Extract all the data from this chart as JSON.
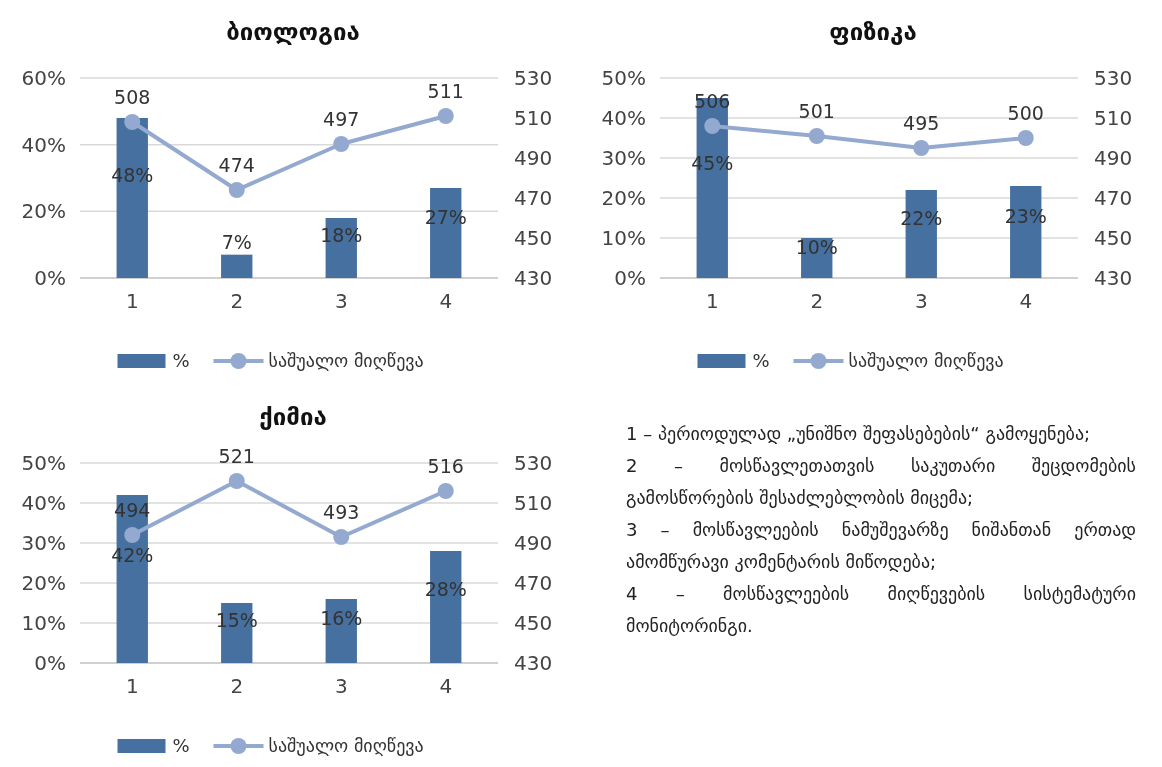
{
  "chart_data": [
    {
      "type": "bar",
      "title": "ბიოლოგია",
      "categories": [
        "1",
        "2",
        "3",
        "4"
      ],
      "ylim": [
        0,
        60
      ],
      "yticks": [
        {
          "value": 0,
          "label": "0%"
        },
        {
          "value": 20,
          "label": "20%"
        },
        {
          "value": 40,
          "label": "40%"
        },
        {
          "value": 60,
          "label": "60%"
        }
      ],
      "y2lim": [
        430,
        530
      ],
      "y2ticks": [
        430,
        450,
        470,
        490,
        510,
        530
      ],
      "grid": "y",
      "legend": "bottom",
      "marker": "circle",
      "line_style": "solid",
      "series": [
        {
          "name": "%",
          "type": "bar",
          "color": "#46709f",
          "values": [
            48,
            7,
            18,
            27
          ],
          "value_labels": [
            "48%",
            "7%",
            "18%",
            "27%"
          ]
        },
        {
          "name": "საშუალო მიღწევა",
          "type": "line",
          "axis": "y2",
          "color": "#94a9cf",
          "values": [
            508,
            474,
            497,
            511
          ],
          "value_labels": [
            "508",
            "474",
            "497",
            "511"
          ]
        }
      ]
    },
    {
      "type": "bar",
      "title": "ფიზიკა",
      "categories": [
        "1",
        "2",
        "3",
        "4"
      ],
      "ylim": [
        0,
        50
      ],
      "yticks": [
        {
          "value": 0,
          "label": "0%"
        },
        {
          "value": 10,
          "label": "10%"
        },
        {
          "value": 20,
          "label": "20%"
        },
        {
          "value": 30,
          "label": "30%"
        },
        {
          "value": 40,
          "label": "40%"
        },
        {
          "value": 50,
          "label": "50%"
        }
      ],
      "y2lim": [
        430,
        530
      ],
      "y2ticks": [
        430,
        450,
        470,
        490,
        510,
        530
      ],
      "grid": "y",
      "legend": "bottom",
      "marker": "circle",
      "line_style": "solid",
      "series": [
        {
          "name": "%",
          "type": "bar",
          "color": "#46709f",
          "values": [
            45,
            10,
            22,
            23
          ],
          "value_labels": [
            "45%",
            "10%",
            "22%",
            "23%"
          ]
        },
        {
          "name": "საშუალო მიღწევა",
          "type": "line",
          "axis": "y2",
          "color": "#94a9cf",
          "values": [
            506,
            501,
            495,
            500
          ],
          "value_labels": [
            "506",
            "501",
            "495",
            "500"
          ]
        }
      ]
    },
    {
      "type": "bar",
      "title": "ქიმია",
      "categories": [
        "1",
        "2",
        "3",
        "4"
      ],
      "ylim": [
        0,
        50
      ],
      "yticks": [
        {
          "value": 0,
          "label": "0%"
        },
        {
          "value": 10,
          "label": "10%"
        },
        {
          "value": 20,
          "label": "20%"
        },
        {
          "value": 30,
          "label": "30%"
        },
        {
          "value": 40,
          "label": "40%"
        },
        {
          "value": 50,
          "label": "50%"
        }
      ],
      "y2lim": [
        430,
        530
      ],
      "y2ticks": [
        430,
        450,
        470,
        490,
        510,
        530
      ],
      "grid": "y",
      "legend": "bottom",
      "marker": "circle",
      "line_style": "solid",
      "series": [
        {
          "name": "%",
          "type": "bar",
          "color": "#46709f",
          "values": [
            42,
            15,
            16,
            28
          ],
          "value_labels": [
            "42%",
            "15%",
            "16%",
            "28%"
          ]
        },
        {
          "name": "საშუალო მიღწევა",
          "type": "line",
          "axis": "y2",
          "color": "#94a9cf",
          "values": [
            494,
            521,
            493,
            516
          ],
          "value_labels": [
            "494",
            "521",
            "493",
            "516"
          ]
        }
      ]
    },
    {
      "type": "other",
      "annotations": [
        "1 – პერიოდულად „უნიშნო შეფასებების“ გამოყენება;",
        "2 – მოსწავლეთათვის საკუთარი შეცდომების გამოსწორების შესაძლებლობის მიცემა;",
        "3 – მოსწავლეების ნამუშევარზე ნიშანთან ერთად ამომწურავი კომენტარის მიწოდება;",
        "4 – მოსწავლეების მიღწევების სისტემატური მონიტორინგი."
      ]
    }
  ]
}
